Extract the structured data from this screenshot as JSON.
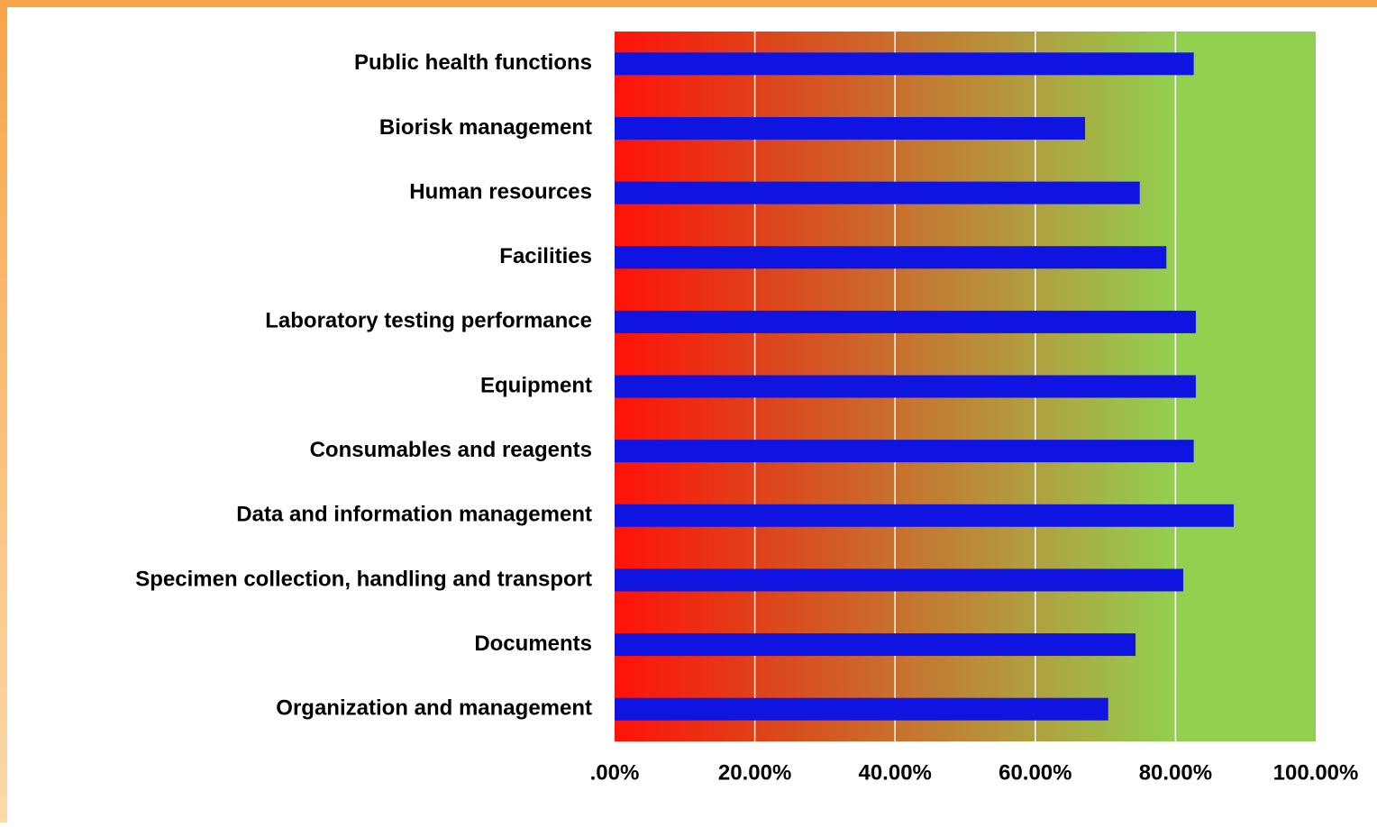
{
  "chart_data": {
    "type": "barh",
    "categories": [
      "Public health functions",
      "Biorisk management",
      "Human resources",
      "Facilities",
      "Laboratory testing performance",
      "Equipment",
      "Consumables and reagents",
      "Data and information management",
      "Specimen collection, handling and transport",
      "Documents",
      "Organization and management"
    ],
    "values": [
      82.6,
      67.1,
      74.9,
      78.7,
      82.9,
      82.9,
      82.6,
      88.3,
      81.1,
      74.3,
      70.4
    ],
    "color": "#0f14e0",
    "xlim": [
      0,
      100
    ],
    "xticks": [
      {
        "value": 0,
        "label": ".00%"
      },
      {
        "value": 20,
        "label": "20.00%"
      },
      {
        "value": 40,
        "label": "40.00%"
      },
      {
        "value": 60,
        "label": "60.00%"
      },
      {
        "value": 80,
        "label": "80.00%"
      },
      {
        "value": 100,
        "label": "100.00%"
      }
    ],
    "grid": true
  }
}
